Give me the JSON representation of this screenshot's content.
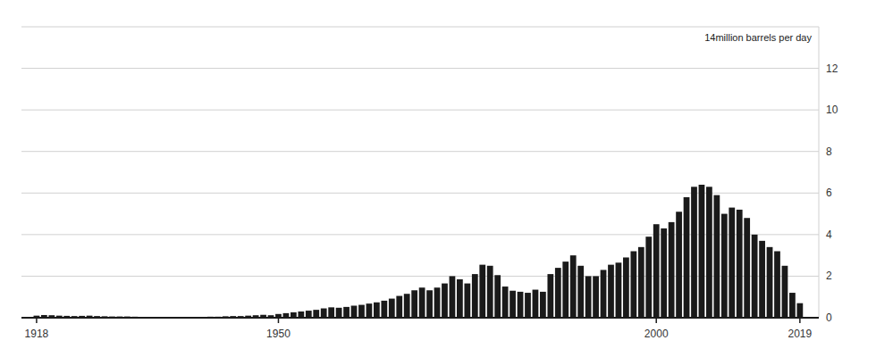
{
  "chart_data": {
    "type": "bar",
    "x": [
      1918,
      1919,
      1920,
      1921,
      1922,
      1923,
      1924,
      1925,
      1926,
      1927,
      1928,
      1929,
      1930,
      1931,
      1932,
      1933,
      1934,
      1935,
      1936,
      1937,
      1938,
      1939,
      1940,
      1941,
      1942,
      1943,
      1944,
      1945,
      1946,
      1947,
      1948,
      1949,
      1950,
      1951,
      1952,
      1953,
      1954,
      1955,
      1956,
      1957,
      1958,
      1959,
      1960,
      1961,
      1962,
      1963,
      1964,
      1965,
      1966,
      1967,
      1968,
      1969,
      1970,
      1971,
      1972,
      1973,
      1974,
      1975,
      1976,
      1977,
      1978,
      1979,
      1980,
      1981,
      1982,
      1983,
      1984,
      1985,
      1986,
      1987,
      1988,
      1989,
      1990,
      1991,
      1992,
      1993,
      1994,
      1995,
      1996,
      1997,
      1998,
      1999,
      2000,
      2001,
      2002,
      2003,
      2004,
      2005,
      2006,
      2007,
      2008,
      2009,
      2010,
      2011,
      2012,
      2013,
      2014,
      2015,
      2016,
      2017,
      2018,
      2019
    ],
    "values": [
      0.1,
      0.13,
      0.12,
      0.1,
      0.09,
      0.08,
      0.09,
      0.1,
      0.08,
      0.07,
      0.06,
      0.06,
      0.06,
      0.05,
      0.04,
      0.04,
      0.04,
      0.04,
      0.04,
      0.04,
      0.04,
      0.04,
      0.04,
      0.05,
      0.05,
      0.07,
      0.08,
      0.08,
      0.1,
      0.12,
      0.14,
      0.12,
      0.18,
      0.22,
      0.26,
      0.3,
      0.34,
      0.38,
      0.45,
      0.5,
      0.48,
      0.52,
      0.58,
      0.62,
      0.68,
      0.74,
      0.82,
      0.92,
      1.05,
      1.15,
      1.32,
      1.45,
      1.32,
      1.45,
      1.65,
      2.0,
      1.85,
      1.65,
      2.1,
      2.55,
      2.5,
      2.05,
      1.5,
      1.3,
      1.25,
      1.2,
      1.35,
      1.25,
      2.1,
      2.4,
      2.7,
      3.0,
      2.5,
      2.0,
      2.0,
      2.3,
      2.55,
      2.65,
      2.9,
      3.2,
      3.4,
      3.9,
      4.5,
      4.3,
      4.6,
      5.1,
      5.8,
      6.3,
      6.4,
      6.3,
      5.9,
      5.0,
      5.3,
      5.2,
      4.8,
      4.0,
      3.7,
      3.4,
      3.2,
      2.5,
      1.2,
      0.7
    ],
    "color": "#1a1a1a",
    "xlim": [
      1916.0,
      2021.5
    ],
    "xticks": [
      1918,
      1950,
      2000,
      2019
    ],
    "ylim": [
      0,
      14
    ],
    "yticks": [
      0,
      2,
      4,
      6,
      8,
      10,
      12
    ],
    "annotation": "14million barrels per day",
    "grid": true
  }
}
